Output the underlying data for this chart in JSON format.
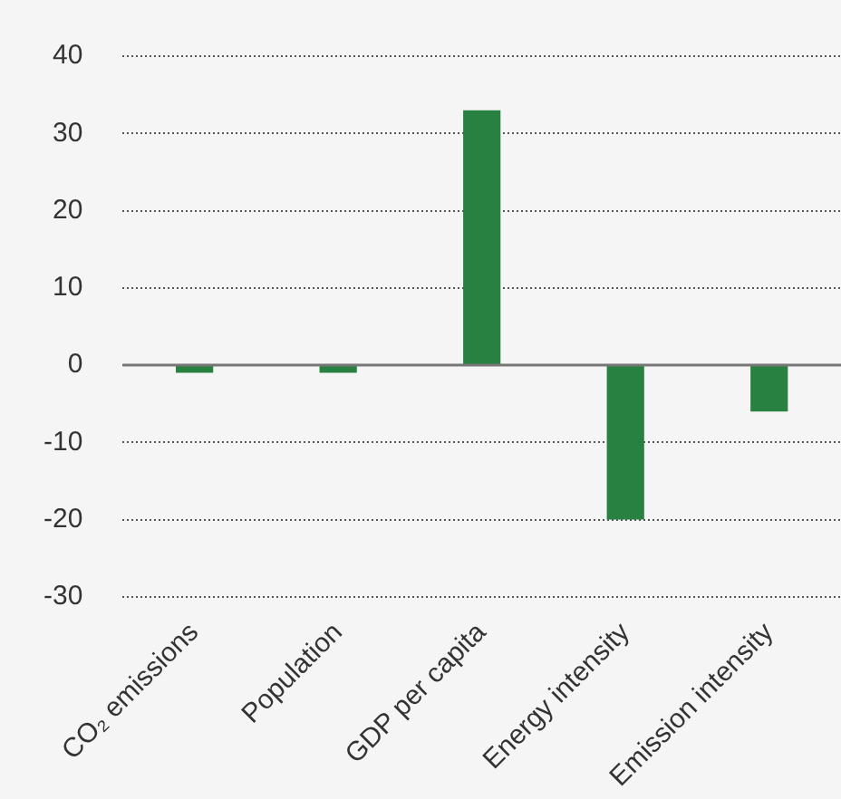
{
  "chart_data": {
    "type": "bar",
    "categories": [
      "CO₂ emissions",
      "Population",
      "GDP per capita",
      "Energy intensity",
      "Emission intensity"
    ],
    "values": [
      -1,
      -1,
      33,
      -20,
      -6
    ],
    "color": "#288140",
    "ylim": [
      -30,
      40
    ],
    "yticks": [
      -30,
      -20,
      -10,
      0,
      10,
      20,
      30,
      40
    ],
    "grid": "y",
    "legend": false
  }
}
